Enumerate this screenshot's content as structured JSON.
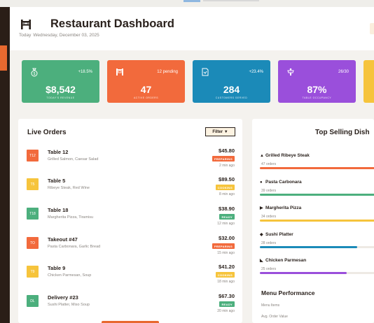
{
  "header": {
    "title": "Restaurant Dashboard",
    "date_prefix": "Today",
    "date": "Wednesday, December 03, 2025"
  },
  "stats": [
    {
      "trend": "+18.5%",
      "value": "$8,542",
      "label": "TODAY'S REVENUE",
      "color": "#4caf7d",
      "icon": "money-bag-icon"
    },
    {
      "trend": "12 pending",
      "value": "47",
      "label": "ACTIVE ORDERS",
      "color": "#f26a3c",
      "icon": "chef-icon"
    },
    {
      "trend": "+23.4%",
      "value": "284",
      "label": "CUSTOMERS SERVED",
      "color": "#1b8ab8",
      "icon": "receipt-icon"
    },
    {
      "trend": "26/30",
      "value": "87%",
      "label": "TABLE OCCUPANCY",
      "color": "#9a4fdb",
      "icon": "table-icon"
    },
    {
      "trend": "",
      "value": "",
      "label": "",
      "color": "#f6c43c",
      "icon": ""
    }
  ],
  "live_orders": {
    "title": "Live Orders",
    "filter_label": "Filter ▼",
    "orders": [
      {
        "badge": "T12",
        "badge_color": "#f26a3c",
        "name": "Table 12",
        "items": "Grilled Salmon, Caesar Salad",
        "price": "$45.80",
        "status": "PREPARING",
        "status_color": "#f26a3c",
        "time": "2 min ago"
      },
      {
        "badge": "T5",
        "badge_color": "#f6c43c",
        "name": "Table 5",
        "items": "Ribeye Steak, Red Wine",
        "price": "$89.50",
        "status": "COOKING",
        "status_color": "#f6c43c",
        "time": "8 min ago"
      },
      {
        "badge": "T18",
        "badge_color": "#4caf7d",
        "name": "Table 18",
        "items": "Margherita Pizza, Tiramisu",
        "price": "$38.90",
        "status": "READY",
        "status_color": "#4caf7d",
        "time": "12 min ago"
      },
      {
        "badge": "TO",
        "badge_color": "#f26a3c",
        "name": "Takeout #47",
        "items": "Pasta Carbonara, Garlic Bread",
        "price": "$32.00",
        "status": "PREPARING",
        "status_color": "#f26a3c",
        "time": "15 min ago"
      },
      {
        "badge": "T9",
        "badge_color": "#f6c43c",
        "name": "Table 9",
        "items": "Chicken Parmesan, Soup",
        "price": "$41.20",
        "status": "COOKING",
        "status_color": "#f6c43c",
        "time": "18 min ago"
      },
      {
        "badge": "DL",
        "badge_color": "#4caf7d",
        "name": "Delivery #23",
        "items": "Sushi Platter, Miso Soup",
        "price": "$67.30",
        "status": "READY",
        "status_color": "#4caf7d",
        "time": "20 min ago"
      }
    ]
  },
  "top_dishes": {
    "title": "Top Selling Dish",
    "dishes": [
      {
        "icon": "steak-icon",
        "glyph": "▲",
        "name": "Grilled Ribeye Steak",
        "count": "47 orders",
        "fill": 1.0,
        "color": "#f26a3c"
      },
      {
        "icon": "pasta-icon",
        "glyph": "●",
        "name": "Pasta Carbonara",
        "count": "39 orders",
        "fill": 1.0,
        "color": "#4caf7d"
      },
      {
        "icon": "pizza-icon",
        "glyph": "▶",
        "name": "Margherita Pizza",
        "count": "34 orders",
        "fill": 1.0,
        "color": "#f6c43c"
      },
      {
        "icon": "sushi-icon",
        "glyph": "◆",
        "name": "Sushi Platter",
        "count": "28 orders",
        "fill": 0.84,
        "color": "#1b8ab8"
      },
      {
        "icon": "chicken-icon",
        "glyph": "◣",
        "name": "Chicken Parmesan",
        "count": "25 orders",
        "fill": 0.75,
        "color": "#9a4fdb"
      }
    ]
  },
  "menu_performance": {
    "title": "Menu Performance",
    "rows": [
      "Menu Items",
      "Avg. Order Value"
    ]
  }
}
